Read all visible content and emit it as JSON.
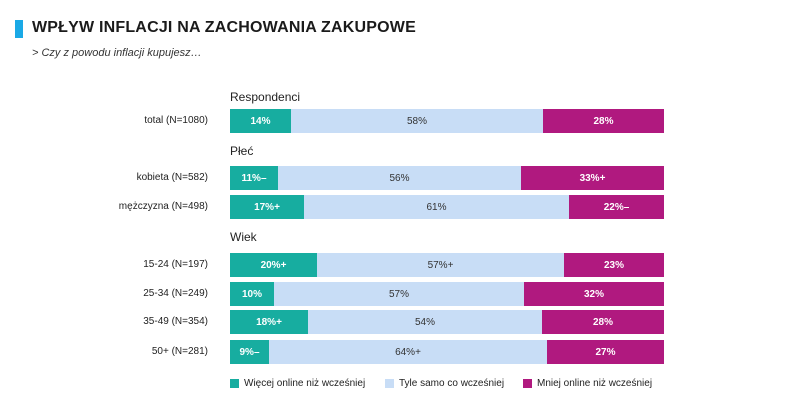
{
  "header": {
    "title": "WPŁYW INFLACJI NA ZACHOWANIA ZAKUPOWE",
    "subtitle": "> Czy z powodu inflacji kupujesz…"
  },
  "colors": {
    "accent": "#1aa9e6",
    "more": "#17ada0",
    "same": "#c8ddf6",
    "less": "#b0197f"
  },
  "chart_data": {
    "type": "bar",
    "orientation": "horizontal",
    "stacked": true,
    "normalized": true,
    "legend_position": "bottom",
    "series": [
      {
        "name": "Więcej online niż wcześniej",
        "key": "more"
      },
      {
        "name": "Tyle samo co wcześniej",
        "key": "same"
      },
      {
        "name": "Mniej online niż wcześniej",
        "key": "less"
      }
    ],
    "groups": [
      {
        "label": "Respondenci",
        "rows": [
          {
            "label": "total (N=1080)",
            "values": [
              14,
              58,
              28
            ],
            "labels": [
              "14%",
              "58%",
              "28%"
            ]
          }
        ]
      },
      {
        "label": "Płeć",
        "rows": [
          {
            "label": "kobieta (N=582)",
            "values": [
              11,
              56,
              33
            ],
            "labels": [
              "11%–",
              "56%",
              "33%+"
            ]
          },
          {
            "label": "mężczyzna (N=498)",
            "values": [
              17,
              61,
              22
            ],
            "labels": [
              "17%+",
              "61%",
              "22%–"
            ]
          }
        ]
      },
      {
        "label": "Wiek",
        "rows": [
          {
            "label": "15-24 (N=197)",
            "values": [
              20,
              57,
              23
            ],
            "labels": [
              "20%+",
              "57%+",
              "23%"
            ]
          },
          {
            "label": "25-34 (N=249)",
            "values": [
              10,
              57,
              32
            ],
            "labels": [
              "10%",
              "57%",
              "32%"
            ]
          },
          {
            "label": "35-49 (N=354)",
            "values": [
              18,
              54,
              28
            ],
            "labels": [
              "18%+",
              "54%",
              "28%"
            ]
          },
          {
            "label": "50+ (N=281)",
            "values": [
              9,
              64,
              27
            ],
            "labels": [
              "9%–",
              "64%+",
              "27%"
            ]
          }
        ]
      }
    ]
  }
}
